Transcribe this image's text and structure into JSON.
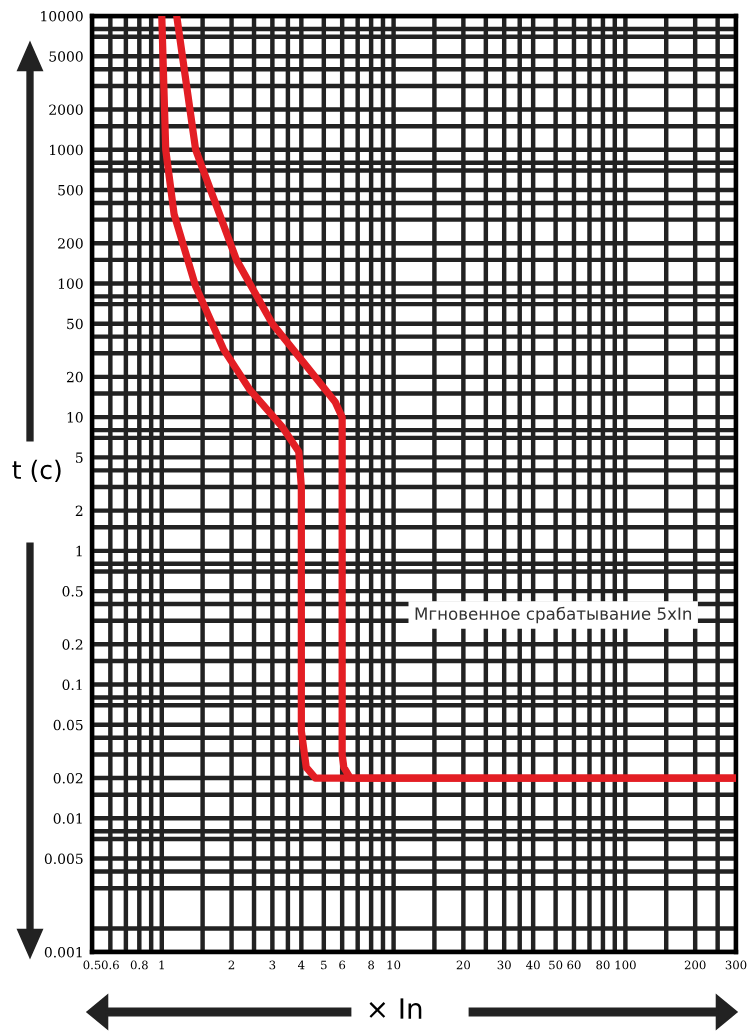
{
  "chart_data": {
    "type": "line",
    "xlabel": "× In",
    "ylabel": "t (c)",
    "annotations": [
      "Мгновенное срабатывание 5xIn"
    ],
    "log": "xy",
    "grid": true,
    "marker": "none",
    "line_style": "solid",
    "xlim": [
      0.5,
      300
    ],
    "ylim": [
      0.001,
      10000
    ],
    "xticks": [
      0.5,
      0.6,
      0.8,
      1,
      2,
      3,
      4,
      5,
      6,
      8,
      10,
      20,
      30,
      40,
      50,
      60,
      80,
      100,
      200,
      300
    ],
    "yticks": [
      0.001,
      0.005,
      0.01,
      0.02,
      0.05,
      0.1,
      0.2,
      0.5,
      1,
      2,
      5,
      10,
      20,
      50,
      100,
      200,
      500,
      1000,
      2000,
      5000,
      10000
    ],
    "series": [
      {
        "color": "#e31e24",
        "x": [
          1.0,
          1.04,
          1.13,
          1.4,
          1.85,
          2.4,
          3.3,
          3.9,
          4.0,
          4.0,
          4.2,
          4.6,
          300
        ],
        "values": [
          10000,
          1000,
          330,
          95,
          32,
          16,
          8.5,
          5.5,
          3,
          0.045,
          0.024,
          0.02,
          0.02
        ]
      },
      {
        "color": "#e31e24",
        "x": [
          1.16,
          1.4,
          2.1,
          3.0,
          4.3,
          5.6,
          6.0,
          6.0,
          6.1,
          6.5,
          300
        ],
        "values": [
          10000,
          1000,
          150,
          50,
          23,
          13,
          10,
          0.03,
          0.024,
          0.02,
          0.02
        ]
      }
    ]
  }
}
